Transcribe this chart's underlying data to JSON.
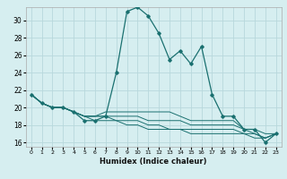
{
  "title": "",
  "xlabel": "Humidex (Indice chaleur)",
  "bg_color": "#d6eef0",
  "grid_color": "#b8d8dc",
  "line_color": "#1a7070",
  "xlim": [
    -0.5,
    23.5
  ],
  "ylim": [
    15.5,
    31.5
  ],
  "yticks": [
    16,
    18,
    20,
    22,
    24,
    26,
    28,
    30
  ],
  "xticks": [
    0,
    1,
    2,
    3,
    4,
    5,
    6,
    7,
    8,
    9,
    10,
    11,
    12,
    13,
    14,
    15,
    16,
    17,
    18,
    19,
    20,
    21,
    22,
    23
  ],
  "series": [
    {
      "x": [
        0,
        1,
        2,
        3,
        4,
        5,
        6,
        7,
        8,
        9,
        10,
        11,
        12,
        13,
        14,
        15,
        16,
        17,
        18,
        19,
        20,
        21,
        22,
        23
      ],
      "y": [
        21.5,
        20.5,
        20.0,
        20.0,
        19.5,
        18.5,
        18.5,
        19.0,
        24.0,
        31.0,
        31.5,
        30.5,
        28.5,
        25.5,
        26.5,
        25.0,
        27.0,
        21.5,
        19.0,
        19.0,
        17.5,
        17.5,
        16.0,
        17.0
      ],
      "marker": true,
      "linestyle": "-"
    },
    {
      "x": [
        0,
        1,
        2,
        3,
        4,
        5,
        6,
        7,
        8,
        9,
        10,
        11,
        12,
        13,
        14,
        15,
        16,
        17,
        18,
        19,
        20,
        21,
        22,
        23
      ],
      "y": [
        21.5,
        20.5,
        20.0,
        20.0,
        19.5,
        19.0,
        19.0,
        19.5,
        19.5,
        19.5,
        19.5,
        19.5,
        19.5,
        19.5,
        19.0,
        18.5,
        18.5,
        18.5,
        18.5,
        18.5,
        17.5,
        17.5,
        17.0,
        17.0
      ],
      "marker": false,
      "linestyle": "-"
    },
    {
      "x": [
        0,
        1,
        2,
        3,
        4,
        5,
        6,
        7,
        8,
        9,
        10,
        11,
        12,
        13,
        14,
        15,
        16,
        17,
        18,
        19,
        20,
        21,
        22,
        23
      ],
      "y": [
        21.5,
        20.5,
        20.0,
        20.0,
        19.5,
        19.0,
        19.0,
        19.0,
        19.0,
        19.0,
        19.0,
        18.5,
        18.5,
        18.5,
        18.5,
        18.0,
        18.0,
        18.0,
        18.0,
        18.0,
        17.5,
        17.0,
        16.5,
        17.0
      ],
      "marker": false,
      "linestyle": "-"
    },
    {
      "x": [
        0,
        1,
        2,
        3,
        4,
        5,
        6,
        7,
        8,
        9,
        10,
        11,
        12,
        13,
        14,
        15,
        16,
        17,
        18,
        19,
        20,
        21,
        22,
        23
      ],
      "y": [
        21.5,
        20.5,
        20.0,
        20.0,
        19.5,
        19.0,
        19.0,
        19.0,
        18.5,
        18.5,
        18.5,
        18.0,
        18.0,
        17.5,
        17.5,
        17.5,
        17.5,
        17.5,
        17.5,
        17.5,
        17.0,
        17.0,
        16.5,
        17.0
      ],
      "marker": false,
      "linestyle": "-"
    },
    {
      "x": [
        0,
        1,
        2,
        3,
        4,
        5,
        6,
        7,
        8,
        9,
        10,
        11,
        12,
        13,
        14,
        15,
        16,
        17,
        18,
        19,
        20,
        21,
        22,
        23
      ],
      "y": [
        21.5,
        20.5,
        20.0,
        20.0,
        19.5,
        19.0,
        18.5,
        18.5,
        18.5,
        18.0,
        18.0,
        17.5,
        17.5,
        17.5,
        17.5,
        17.0,
        17.0,
        17.0,
        17.0,
        17.0,
        17.0,
        16.5,
        16.5,
        17.0
      ],
      "marker": false,
      "linestyle": "-"
    }
  ]
}
